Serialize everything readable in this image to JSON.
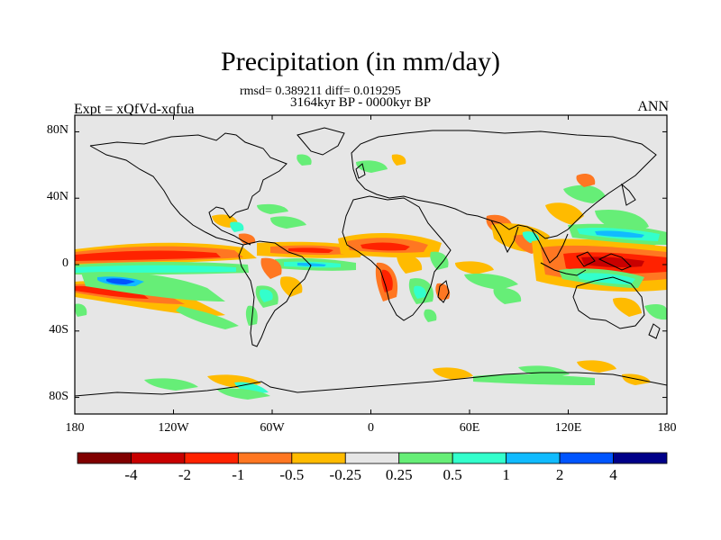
{
  "header": {
    "title": "Precipitation (in mm/day)",
    "stats": "rmsd= 0.389211 diff= 0.019295",
    "period": "3164kyr BP - 0000kyr BP",
    "experiment": "Expt = xQfVd-xqfua",
    "season": "ANN"
  },
  "map": {
    "projection": "cylindrical-equidistant",
    "lon_range": [
      -180,
      180
    ],
    "lat_range": [
      -90,
      90
    ],
    "background_color": "#e6e6e6",
    "x_ticks": [
      {
        "lon": -180,
        "label": "180"
      },
      {
        "lon": -120,
        "label": "120W"
      },
      {
        "lon": -60,
        "label": "60W"
      },
      {
        "lon": 0,
        "label": "0"
      },
      {
        "lon": 60,
        "label": "60E"
      },
      {
        "lon": 120,
        "label": "120E"
      },
      {
        "lon": 180,
        "label": "180"
      }
    ],
    "y_ticks": [
      {
        "lat": 80,
        "label": "80N"
      },
      {
        "lat": 40,
        "label": "40N"
      },
      {
        "lat": 0,
        "label": "0"
      },
      {
        "lat": -40,
        "label": "40S"
      },
      {
        "lat": -80,
        "label": "80S"
      }
    ]
  },
  "colorbar": {
    "colors": [
      "#800000",
      "#c80000",
      "#ff2200",
      "#ff7722",
      "#ffbb00",
      "#e6e6e6",
      "#66ee77",
      "#33ffcc",
      "#11bbff",
      "#0055ff",
      "#000088"
    ],
    "labels": [
      "-4",
      "-2",
      "-1",
      "-0.5",
      "-0.25",
      "0.25",
      "0.5",
      "1",
      "2",
      "4"
    ]
  }
}
